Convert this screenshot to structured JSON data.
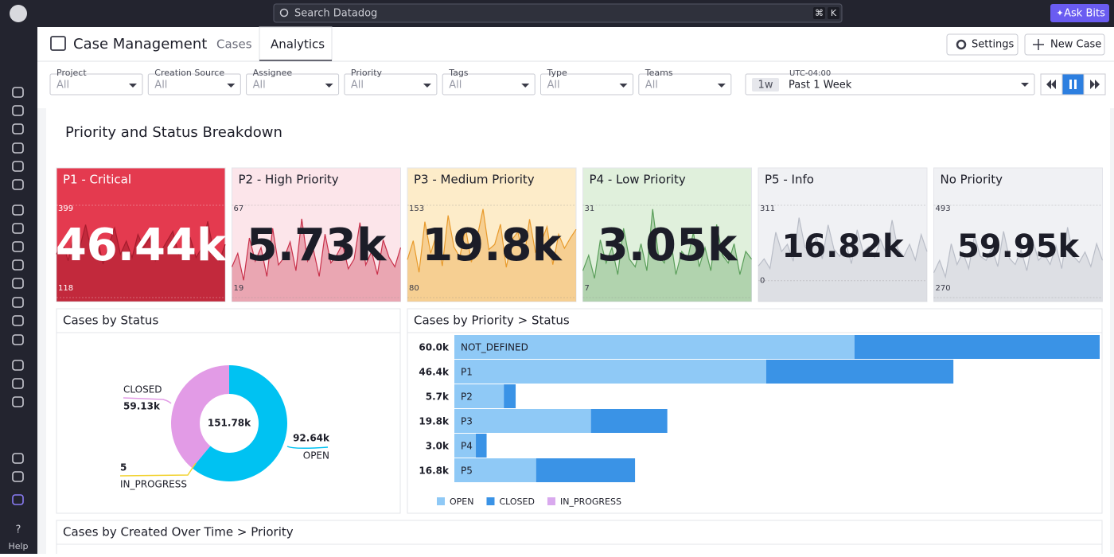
{
  "topbar": {
    "search": "Search Datadog",
    "keys": [
      "⌘",
      "K"
    ],
    "ask": "Ask Bits"
  },
  "sidebar": {
    "help": "Help"
  },
  "header": {
    "title": "Case Management",
    "tabs": [
      "Cases",
      "Analytics"
    ],
    "settings": "Settings",
    "new_case": "New Case"
  },
  "filters": [
    {
      "label": "Project",
      "value": "All"
    },
    {
      "label": "Creation Source",
      "value": "All"
    },
    {
      "label": "Assignee",
      "value": "All"
    },
    {
      "label": "Priority",
      "value": "All"
    },
    {
      "label": "Tags",
      "value": "All"
    },
    {
      "label": "Type",
      "value": "All"
    },
    {
      "label": "Teams",
      "value": "All"
    }
  ],
  "time": {
    "timezone": "UTC-04:00",
    "short": "1w",
    "range": "Past 1 Week"
  },
  "section_title": "Priority and Status Breakdown",
  "timeline_title": "Cases by Created Over Time > Priority",
  "chart_data": [
    {
      "type": "area",
      "title": "P1 - Critical",
      "summary": "46.44k",
      "ylim": [
        118,
        399
      ],
      "yticks": [
        399,
        118
      ],
      "color": "#a51c2d",
      "background": "#e43a4f",
      "values": [
        250,
        290,
        230,
        310,
        270,
        340,
        260,
        300,
        220,
        280,
        330,
        250,
        290,
        240,
        310,
        270,
        300,
        230,
        260,
        290,
        320,
        250,
        280,
        300,
        240,
        270,
        350,
        260,
        230,
        280
      ]
    },
    {
      "type": "area",
      "title": "P2 - High Priority",
      "summary": "5.73k",
      "ylim": [
        19,
        67
      ],
      "yticks": [
        67,
        19
      ],
      "color": "#c8304a",
      "background": "#fce5ea",
      "values": [
        35,
        42,
        28,
        50,
        38,
        45,
        30,
        55,
        36,
        40,
        48,
        33,
        60,
        38,
        44,
        30,
        52,
        37,
        41,
        47,
        34,
        39,
        58,
        36,
        43,
        31,
        49,
        40,
        35,
        45
      ]
    },
    {
      "type": "area",
      "title": "P3 - Medium Priority",
      "summary": "19.8k",
      "ylim": [
        80,
        153
      ],
      "yticks": [
        153,
        80
      ],
      "color": "#e89a2c",
      "background": "#fdecc9",
      "values": [
        110,
        125,
        100,
        140,
        115,
        130,
        105,
        145,
        120,
        112,
        135,
        108,
        128,
        150,
        118,
        122,
        138,
        104,
        126,
        132,
        110,
        142,
        116,
        124,
        136,
        106,
        130,
        119,
        127,
        134
      ]
    },
    {
      "type": "area",
      "title": "P4 - Low Priority",
      "summary": "3.05k",
      "ylim": [
        7,
        31
      ],
      "yticks": [
        31,
        7
      ],
      "color": "#5a9e5a",
      "background": "#e0f0dc",
      "values": [
        14,
        18,
        12,
        22,
        16,
        20,
        13,
        25,
        17,
        15,
        21,
        14,
        30,
        18,
        16,
        23,
        13,
        19,
        17,
        24,
        15,
        20,
        14,
        26,
        18,
        16,
        21,
        13,
        19,
        17
      ]
    },
    {
      "type": "area",
      "title": "P5 - Info",
      "summary": "16.82k",
      "ylim": [
        -70,
        311
      ],
      "yticks": [
        311,
        0
      ],
      "color": "#b9bdc7",
      "background": "#f0f1f4",
      "values": [
        60,
        90,
        50,
        200,
        120,
        150,
        80,
        260,
        140,
        110,
        180,
        90,
        230,
        130,
        100,
        160,
        70,
        210,
        120,
        140,
        95,
        170,
        110,
        250,
        130,
        100,
        150,
        85,
        190,
        120
      ]
    },
    {
      "type": "area",
      "title": "No Priority",
      "summary": "59.95k",
      "ylim": [
        270,
        493
      ],
      "yticks": [
        493,
        270
      ],
      "color": "#b9bdc7",
      "background": "#f0f1f4",
      "values": [
        330,
        360,
        320,
        400,
        350,
        380,
        340,
        420,
        370,
        360,
        390,
        345,
        430,
        365,
        350,
        385,
        335,
        410,
        360,
        375,
        350,
        395,
        340,
        440,
        370,
        355,
        380,
        345,
        400,
        360
      ]
    },
    {
      "type": "pie",
      "title": "Cases by Status",
      "total": "151.78k",
      "categories": [
        "OPEN",
        "CLOSED",
        "IN_PROGRESS"
      ],
      "values": [
        92640,
        59130,
        5
      ],
      "value_labels": [
        "92.64k",
        "59.13k",
        "5"
      ],
      "colors": [
        "#00c2f2",
        "#e29be6",
        "#f2d230"
      ]
    },
    {
      "type": "bar",
      "title": "Cases by Priority > Status",
      "categories": [
        "NOT_DEFINED",
        "P1",
        "P2",
        "P3",
        "P4",
        "P5"
      ],
      "total_labels": [
        "60.0k",
        "46.4k",
        "5.7k",
        "19.8k",
        "3.0k",
        "16.8k"
      ],
      "xlim": [
        0,
        60
      ],
      "series": [
        {
          "name": "OPEN",
          "color": "#8fc9f6",
          "values": [
            37.2,
            29.0,
            4.6,
            12.7,
            2.0,
            7.6
          ]
        },
        {
          "name": "CLOSED",
          "color": "#3a93e6",
          "values": [
            22.8,
            17.4,
            1.1,
            7.1,
            1.0,
            9.2
          ]
        },
        {
          "name": "IN_PROGRESS",
          "color": "#d9a9ee",
          "values": [
            0.005,
            0,
            0,
            0,
            0,
            0
          ]
        }
      ]
    }
  ]
}
